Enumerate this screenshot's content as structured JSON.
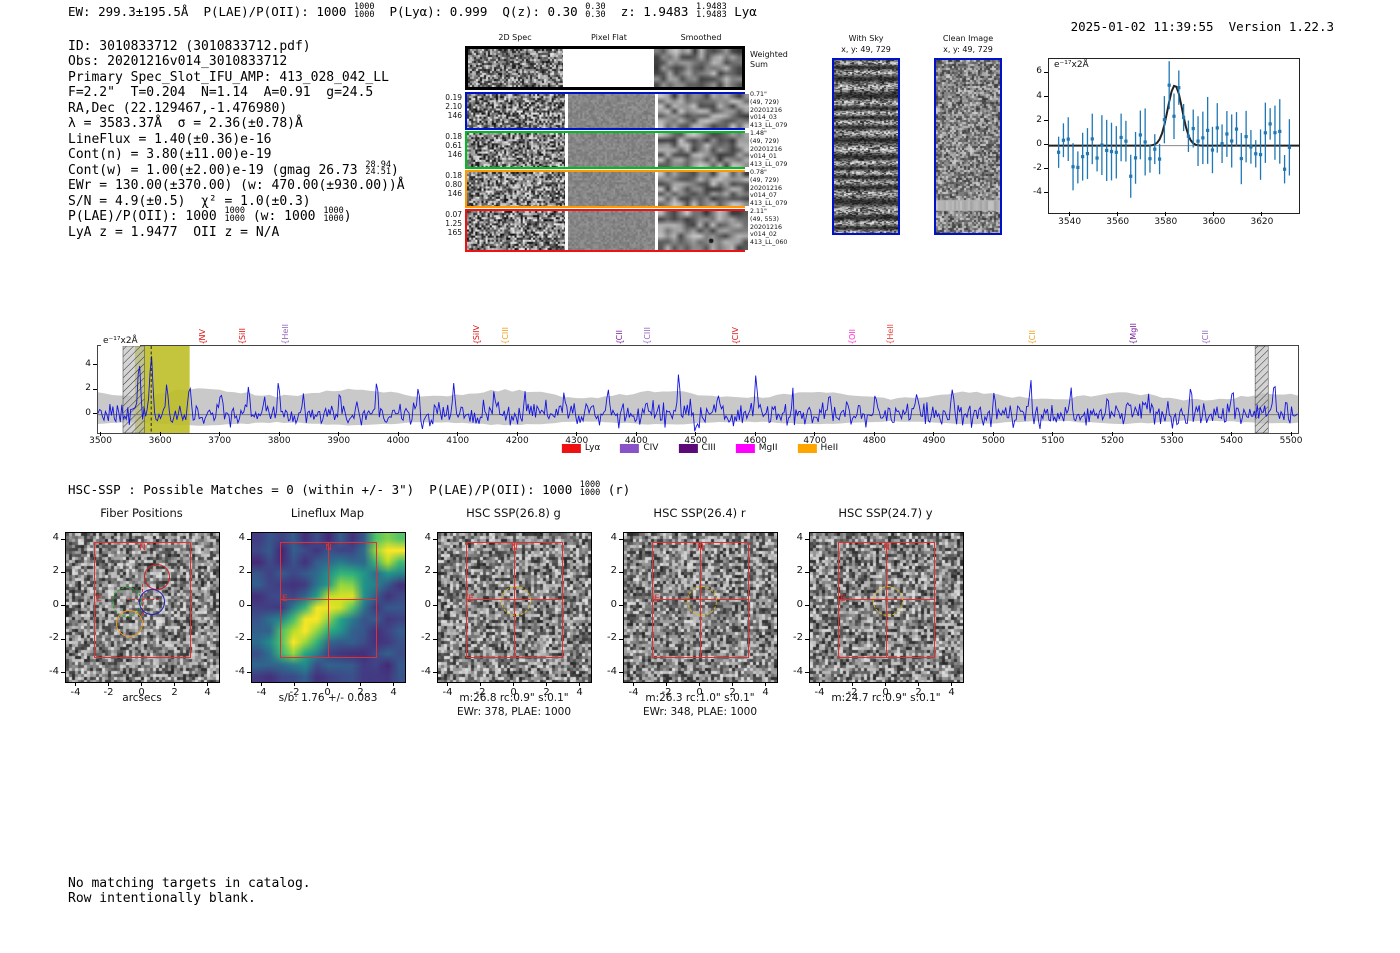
{
  "header": {
    "left_parts": [
      {
        "t": "EW: 299.3±195.5Å  P(LAE)/P(OII): 1000 "
      },
      {
        "f": [
          "1000",
          "1000"
        ]
      },
      {
        "t": "  P(Lyα): 0.999  Q(z): 0.30 "
      },
      {
        "f": [
          "0.30",
          "0.30"
        ]
      },
      {
        "t": "  z: 1.9483 "
      },
      {
        "f": [
          "1.9483",
          "1.9483"
        ]
      },
      {
        "t": " Lyα"
      }
    ],
    "timestamp": "2025-01-02 11:39:55",
    "version": "Version 1.22.3"
  },
  "info_block": {
    "lines": [
      [
        {
          "t": "ID: 3010833712 (3010833712.pdf)"
        }
      ],
      [
        {
          "t": "Obs: 20201216v014_3010833712"
        }
      ],
      [
        {
          "t": "Primary Spec_Slot_IFU_AMP: 413_028_042_LL"
        }
      ],
      [
        {
          "t": "F=2.2\"  T=0.204  N=1.14  A=0.91  g=24.5"
        }
      ],
      [
        {
          "t": "RA,Dec (22.129467,-1.476980)"
        }
      ],
      [
        {
          "t": "λ = 3583.37Å  σ = 2.36(±0.78)Å"
        }
      ],
      [
        {
          "t": "LineFlux = 1.40(±0.36)e-16"
        }
      ],
      [
        {
          "t": "Cont(n) = 3.80(±11.00)e-19"
        }
      ],
      [
        {
          "t": "Cont(w) = 1.00(±2.00)e-19 (gmag 26.73 "
        },
        {
          "f": [
            "28.94",
            "24.51"
          ]
        },
        {
          "t": ")"
        }
      ],
      [
        {
          "t": "EWr = 130.00(±370.00) (w: 470.00(±930.00))Å"
        }
      ],
      [
        {
          "t": "S/N = 4.9(±0.5)  χ² = 1.0(±0.3)"
        }
      ],
      [
        {
          "t": "P(LAE)/P(OII): 1000 "
        },
        {
          "f": [
            "1000",
            "1000"
          ]
        },
        {
          "t": " (w: 1000 "
        },
        {
          "f": [
            "1000",
            "1000"
          ]
        },
        {
          "t": ")"
        }
      ],
      [
        {
          "t": "LyA z = 1.9477  OII z = N/A"
        }
      ]
    ]
  },
  "cutouts2d": {
    "col_headers": [
      "2D Spec",
      "Pixel Flat",
      "Smoothed"
    ],
    "rows": [
      {
        "border": "#000000",
        "left": [],
        "right": [
          "Weighted",
          "Sum"
        ]
      },
      {
        "border": "#0011cc",
        "left": [
          "0.19",
          "2.10",
          "146"
        ],
        "right": [
          "0.71\"",
          "(49, 729)",
          "20201216",
          "v014_03",
          "413_LL_079"
        ]
      },
      {
        "border": "#00bb22",
        "left": [
          "0.18",
          "0.61",
          "146"
        ],
        "right": [
          "1.48\"",
          "(49, 729)",
          "20201216",
          "v014_01",
          "413_LL_079"
        ]
      },
      {
        "border": "#ff9900",
        "left": [
          "0.18",
          "0.80",
          "146"
        ],
        "right": [
          "0.78\"",
          "(49, 729)",
          "20201216",
          "v014_07",
          "413_LL_079"
        ]
      },
      {
        "border": "#ee1111",
        "left": [
          "0.07",
          "1.25",
          "165"
        ],
        "right": [
          "2.11\"",
          "(49, 553)",
          "20201216",
          "v014_02",
          "413_LL_060"
        ]
      }
    ]
  },
  "sky_panels": {
    "with_sky": {
      "title": "With Sky",
      "subtitle": "x, y: 49, 729",
      "border": "#0011cc"
    },
    "clean": {
      "title": "Clean Image",
      "subtitle": "x, y: 49, 729",
      "border": "#0011cc"
    }
  },
  "hsc_line_parts": [
    {
      "t": "HSC-SSP : Possible Matches = 0 (within +/- 3\")  P(LAE)/P(OII): 1000 "
    },
    {
      "f": [
        "1000",
        "1000"
      ]
    },
    {
      "t": " (r)"
    }
  ],
  "chart_data": [
    {
      "id": "line_fit_plot",
      "type": "scatter",
      "corner_label": "e⁻¹⁷x2Å",
      "xlim": [
        3531,
        3635
      ],
      "ylim": [
        -5.6,
        7.2
      ],
      "xticks": [
        3540,
        3560,
        3580,
        3600,
        3620
      ],
      "yticks": [
        6,
        4,
        2,
        0,
        -2,
        -4
      ],
      "fit": {
        "shape": "gaussian",
        "center": 3583.37,
        "sigma": 2.36,
        "peak": 5.0
      },
      "marker_color": "#1f77b4",
      "fit_color": "#222222",
      "note": "blue errorbar spectrum points scattered about 0 with black gaussian emission-line fit peaking ~5 at 3583.37 Å"
    },
    {
      "id": "full_spectrum",
      "type": "line",
      "corner_label": "e⁻¹⁷x2Å",
      "xlim": [
        3494,
        5510
      ],
      "ylim": [
        -1.5,
        5.6
      ],
      "xticks": [
        3500,
        3600,
        3700,
        3800,
        3900,
        4000,
        4100,
        4200,
        4300,
        4400,
        4500,
        4600,
        4700,
        4800,
        4900,
        5000,
        5100,
        5200,
        5300,
        5400,
        5500
      ],
      "yticks": [
        0,
        2,
        4
      ],
      "line_color": "#1414e0",
      "error_envelope_color": "#c9c9c9",
      "emission_line": {
        "center": 3583.37,
        "peak": 5.1
      },
      "highlight_band": {
        "range": [
          3556,
          3648
        ],
        "color": "#bcbd22"
      },
      "hatched_bands": [
        [
          3536,
          3572
        ],
        [
          5438,
          5460
        ]
      ],
      "line_markers": [
        {
          "label": "NV",
          "wavelength": 3672,
          "color": "#e01010"
        },
        {
          "label": "SiII",
          "wavelength": 3738,
          "color": "#e01010"
        },
        {
          "label": "HeII",
          "wavelength": 3810,
          "color": "#9467bd"
        },
        {
          "label": "SiIV",
          "wavelength": 4132,
          "color": "#e01010"
        },
        {
          "label": "CIII",
          "wavelength": 4180,
          "color": "#f0a01e"
        },
        {
          "label": "CII",
          "wavelength": 4372,
          "color": "#7a1fa2"
        },
        {
          "label": "CIII",
          "wavelength": 4418,
          "color": "#9467bd"
        },
        {
          "label": "CIV",
          "wavelength": 4567,
          "color": "#e01010"
        },
        {
          "label": "OII",
          "wavelength": 4763,
          "color": "#ff2fd2"
        },
        {
          "label": "HeII",
          "wavelength": 4827,
          "color": "#e8453c"
        },
        {
          "label": "CII",
          "wavelength": 5065,
          "color": "#f0a01e"
        },
        {
          "label": "MgII",
          "wavelength": 5235,
          "color": "#7a1fa2"
        },
        {
          "label": "CII",
          "wavelength": 5357,
          "color": "#9467bd"
        }
      ],
      "legend": [
        {
          "label": "Lyα",
          "color": "#ee1111"
        },
        {
          "label": "CIV",
          "color": "#8a52c9"
        },
        {
          "label": "CIII",
          "color": "#5c0a78"
        },
        {
          "label": "MgII",
          "color": "#ff00ff"
        },
        {
          "label": "HeII",
          "color": "#ffa500"
        }
      ]
    }
  ],
  "bottom_panels": {
    "yticks": [
      4,
      2,
      0,
      -2,
      -4
    ],
    "xticks": [
      -4,
      -2,
      0,
      2,
      4
    ],
    "compass": {
      "north": "N",
      "east": "E"
    },
    "panels": [
      {
        "title": "Fiber Positions",
        "kind": "fiber",
        "caption1": "arcsecs",
        "caption2": ""
      },
      {
        "title": "Lineflux Map",
        "kind": "lineflux",
        "caption1": "s/b: 1.76 +/- 0.083",
        "caption2": ""
      },
      {
        "title": "HSC SSP(26.8) g",
        "kind": "hsc",
        "caption1": "m:26.8 rc:0.9\"  s:0.1\"",
        "caption2": "EWr: 378, PLAE: 1000"
      },
      {
        "title": "HSC SSP(26.4) r",
        "kind": "hsc",
        "caption1": "m:26.3 rc:1.0\"  s:0.1\"",
        "caption2": "EWr: 348, PLAE: 1000"
      },
      {
        "title": "HSC SSP(24.7) y",
        "kind": "hsc",
        "caption1": "m:24.7 rc:0.9\"  s:0.1\"",
        "caption2": ""
      }
    ]
  },
  "footer_lines": [
    "No matching targets in catalog.",
    "Row intentionally blank."
  ]
}
